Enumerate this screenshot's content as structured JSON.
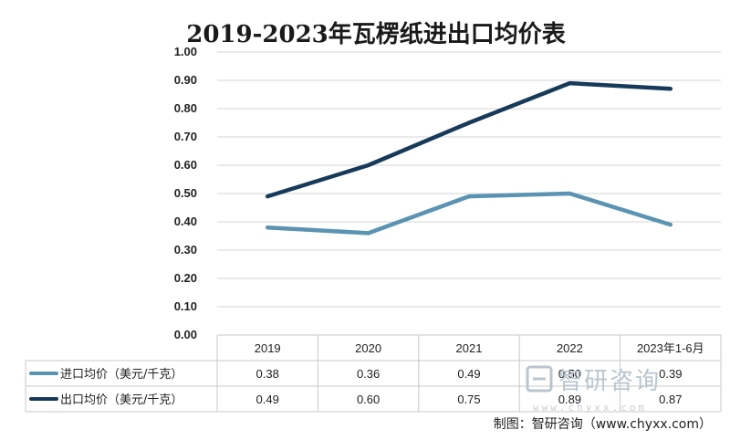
{
  "chart_data": {
    "type": "line",
    "title": "2019-2023年瓦楞纸进出口均价表",
    "categories": [
      "2019",
      "2020",
      "2021",
      "2022",
      "2023年1-6月"
    ],
    "ylim": [
      0,
      1.0
    ],
    "yticks": [
      "0.00",
      "0.10",
      "0.20",
      "0.30",
      "0.40",
      "0.50",
      "0.60",
      "0.70",
      "0.80",
      "0.90",
      "1.00"
    ],
    "grid": true,
    "legend": "bottom-left data table",
    "series": [
      {
        "name": "进口均价（美元/千克）",
        "values": [
          0.38,
          0.36,
          0.49,
          0.5,
          0.39
        ],
        "labels": [
          "0.38",
          "0.36",
          "0.49",
          "0.50",
          "0.39"
        ],
        "color": "#5b93b2"
      },
      {
        "name": "出口均价（美元/千克）",
        "values": [
          0.49,
          0.6,
          0.75,
          0.89,
          0.87
        ],
        "labels": [
          "0.49",
          "0.60",
          "0.75",
          "0.89",
          "0.87"
        ],
        "color": "#173a5a"
      }
    ]
  },
  "watermark": {
    "name": "智研咨询",
    "url": "www.chyxx.com"
  },
  "source": "制图：智研咨询（www.chyxx.com）"
}
